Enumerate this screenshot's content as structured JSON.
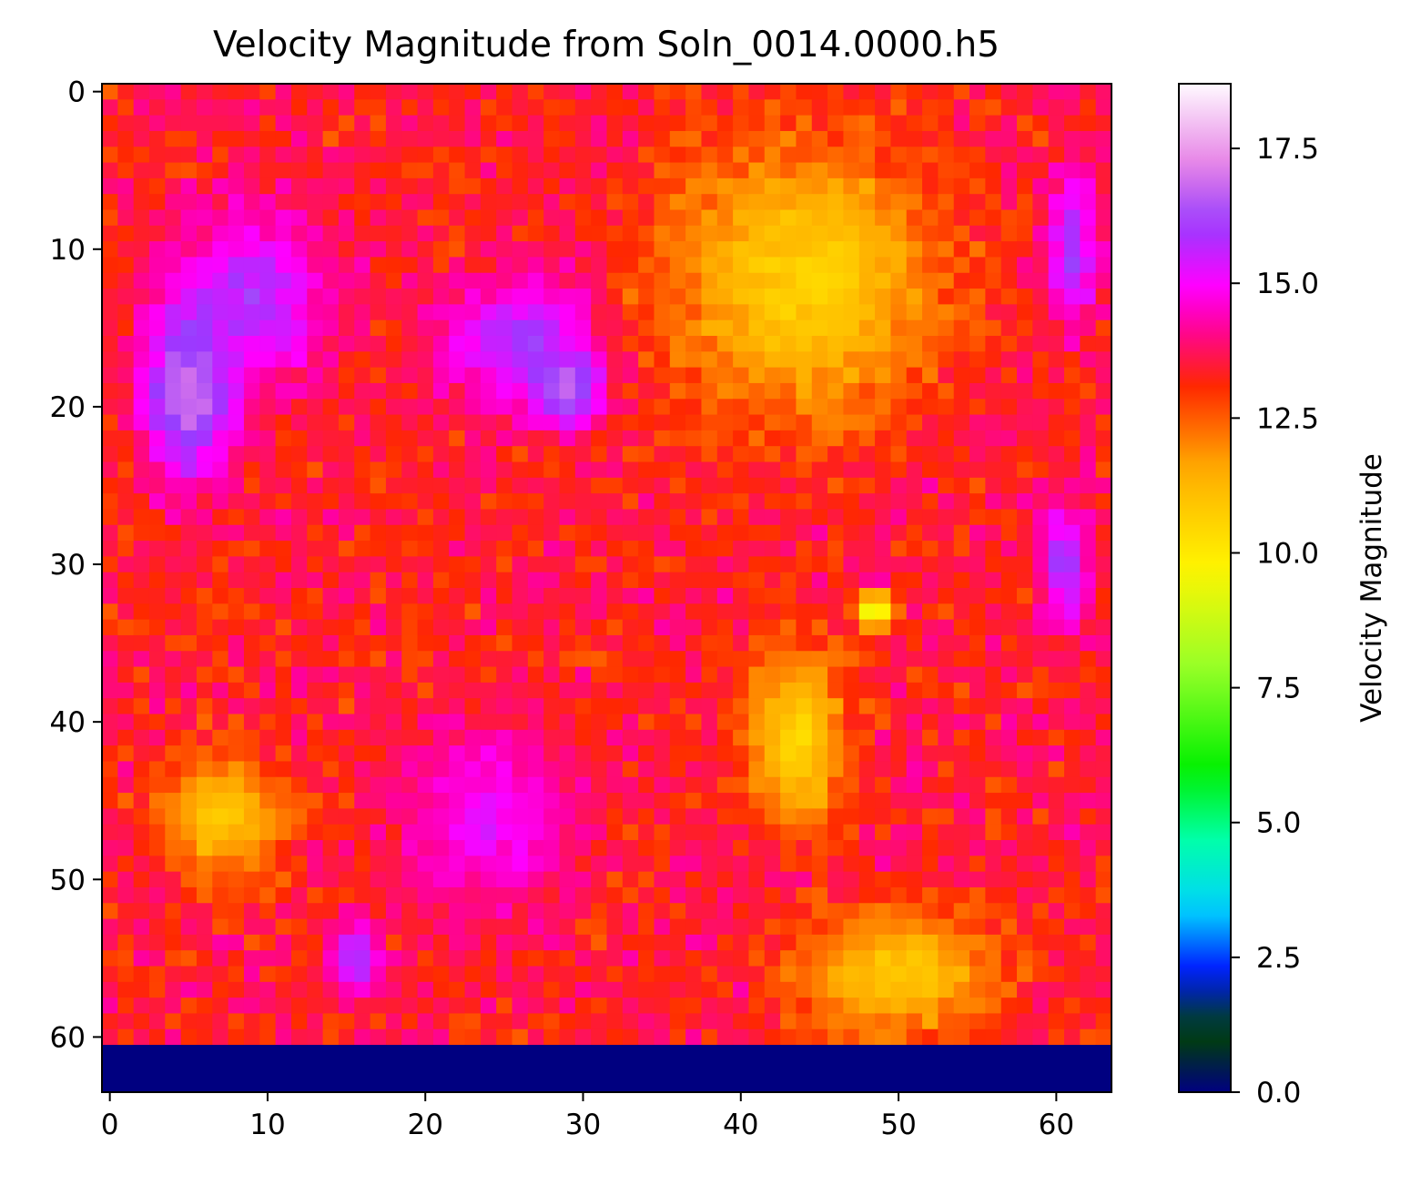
{
  "chart_data": {
    "type": "heatmap",
    "title": "Velocity Magnitude from Soln_0014.0000.h5",
    "colormap": "gist_ncar",
    "grid": false,
    "x_range": [
      -0.5,
      63.5
    ],
    "y_range": [
      63.5,
      -0.5
    ],
    "grid_size": [
      64,
      64
    ],
    "x_ticks": [
      "0",
      "10",
      "20",
      "30",
      "40",
      "50",
      "60"
    ],
    "y_ticks": [
      "0",
      "10",
      "20",
      "30",
      "40",
      "50",
      "60"
    ],
    "colorbar": {
      "label": "Velocity Magnitude",
      "range": [
        0.0,
        18.7
      ],
      "ticks": [
        "0.0",
        "2.5",
        "5.0",
        "7.5",
        "10.0",
        "12.5",
        "15.0",
        "17.5"
      ]
    },
    "bottom_rows_value": 0.0,
    "bottom_rows_start": 61,
    "regions": [
      {
        "label": "top-left lavender/white blob",
        "cx": 5,
        "cy": 19,
        "rx": 3.5,
        "ry": 7,
        "value": 17.3
      },
      {
        "label": "upper-left purple zone",
        "cx": 9,
        "cy": 13,
        "rx": 6,
        "ry": 7,
        "value": 15.9
      },
      {
        "label": "upper-middle purple zone",
        "cx": 26,
        "cy": 16,
        "rx": 6,
        "ry": 5,
        "value": 16.0
      },
      {
        "label": "upper-middle pale blob",
        "cx": 29,
        "cy": 19,
        "rx": 2.5,
        "ry": 3,
        "value": 17.0
      },
      {
        "label": "upper-right yellow zone",
        "cx": 44,
        "cy": 12,
        "rx": 11,
        "ry": 11,
        "value": 10.7
      },
      {
        "label": "right edge purple strip",
        "cx": 61,
        "cy": 10,
        "rx": 2,
        "ry": 6,
        "value": 16.0
      },
      {
        "label": "right lower purple strip",
        "cx": 60.5,
        "cy": 30,
        "rx": 2,
        "ry": 5,
        "value": 16.0
      },
      {
        "label": "center-right yellow blob",
        "cx": 43.5,
        "cy": 41,
        "rx": 4,
        "ry": 7,
        "value": 10.6
      },
      {
        "label": "green spot",
        "cx": 48.5,
        "cy": 33,
        "rx": 1.2,
        "ry": 1.5,
        "value": 8.5
      },
      {
        "label": "lower-left yellow blob",
        "cx": 7,
        "cy": 46,
        "rx": 5,
        "ry": 5,
        "value": 11.0
      },
      {
        "label": "center-bottom magenta zone",
        "cx": 24,
        "cy": 46,
        "rx": 7,
        "ry": 7,
        "value": 15.1
      },
      {
        "label": "lower-left purple blob",
        "cx": 15.5,
        "cy": 55,
        "rx": 2,
        "ry": 3,
        "value": 16.2
      },
      {
        "label": "lower-right yellow zone",
        "cx": 50,
        "cy": 56,
        "rx": 8,
        "ry": 5,
        "value": 10.9
      }
    ]
  }
}
